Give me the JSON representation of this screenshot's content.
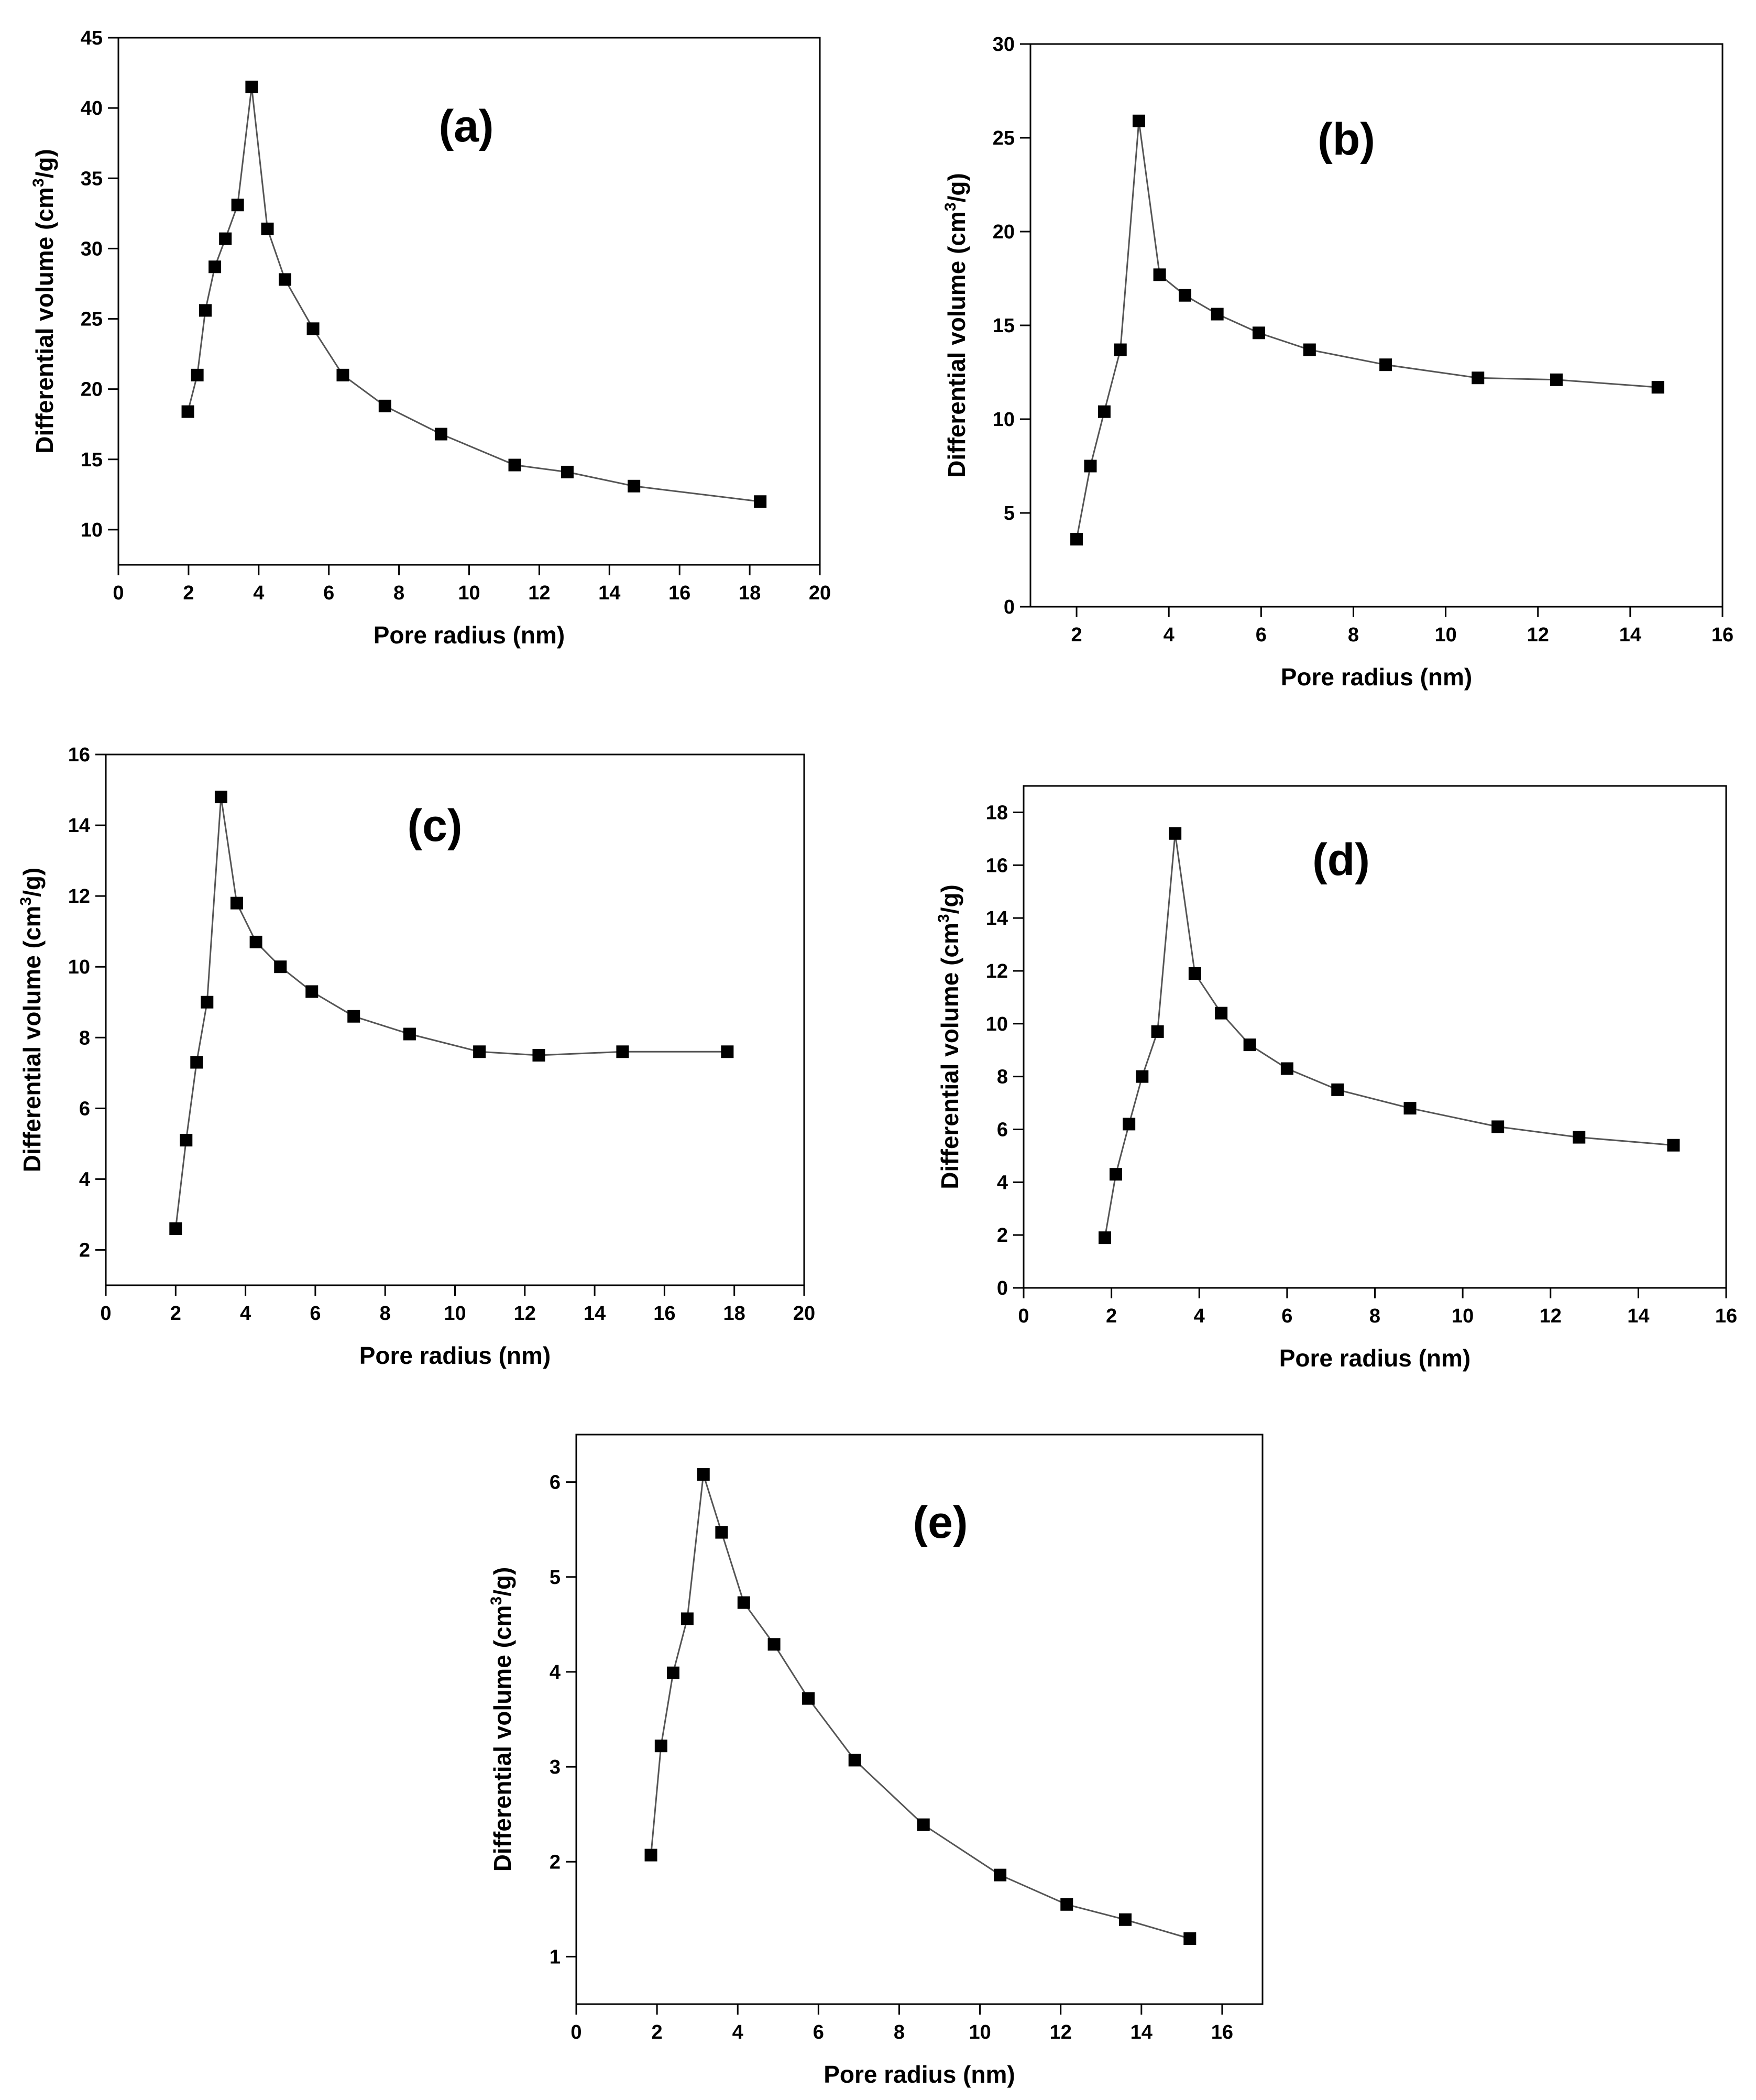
{
  "figure": {
    "description_free": true
  },
  "chart_data": [
    {
      "id": "a",
      "type": "line",
      "title": "(a)",
      "xlabel": "Pore radius (nm)",
      "ylabel_main": "Differential volume (cm",
      "ylabel_sup": "3",
      "ylabel_tail": "/g)",
      "xlim": [
        0,
        20
      ],
      "ylim": [
        7.5,
        45
      ],
      "xticks": [
        0,
        2,
        4,
        6,
        8,
        10,
        12,
        14,
        16,
        18,
        20
      ],
      "xtick_labels": [
        "0",
        "2",
        "4",
        "6",
        "8",
        "10",
        "12",
        "14",
        "16",
        "18",
        "20"
      ],
      "yticks": [
        10,
        15,
        20,
        25,
        30,
        35,
        40,
        45
      ],
      "ytick_labels": [
        "10",
        "15",
        "20",
        "25",
        "30",
        "35",
        "40",
        "45"
      ],
      "marker": "square",
      "x": [
        1.98,
        2.25,
        2.48,
        2.75,
        3.05,
        3.4,
        3.8,
        4.25,
        4.75,
        5.55,
        6.4,
        7.6,
        9.2,
        11.3,
        12.8,
        14.7,
        18.3
      ],
      "y": [
        18.4,
        21.0,
        25.6,
        28.7,
        30.7,
        33.1,
        41.5,
        31.4,
        27.8,
        24.3,
        21.0,
        18.8,
        16.8,
        14.6,
        14.1,
        13.1,
        12.0
      ]
    },
    {
      "id": "b",
      "type": "line",
      "title": "(b)",
      "xlabel": "Pore radius (nm)",
      "ylabel_main": "Differential volume (cm",
      "ylabel_sup": "3",
      "ylabel_tail": "/g)",
      "xlim": [
        1,
        16
      ],
      "ylim": [
        0,
        30
      ],
      "xticks": [
        2,
        4,
        6,
        8,
        10,
        12,
        14,
        16
      ],
      "xtick_labels": [
        "2",
        "4",
        "6",
        "8",
        "10",
        "12",
        "14",
        "16"
      ],
      "yticks": [
        0,
        5,
        10,
        15,
        20,
        25,
        30
      ],
      "ytick_labels": [
        "0",
        "5",
        "10",
        "15",
        "20",
        "25",
        "30"
      ],
      "marker": "square",
      "x": [
        2.0,
        2.3,
        2.6,
        2.95,
        3.35,
        3.8,
        4.35,
        5.05,
        5.95,
        7.05,
        8.7,
        10.7,
        12.4,
        14.6
      ],
      "y": [
        3.6,
        7.5,
        10.4,
        13.7,
        25.9,
        17.7,
        16.6,
        15.6,
        14.6,
        13.7,
        12.9,
        12.2,
        12.1,
        11.7
      ]
    },
    {
      "id": "c",
      "type": "line",
      "title": "(c)",
      "xlabel": "Pore radius (nm)",
      "ylabel_main": "Differential volume (cm",
      "ylabel_sup": "3",
      "ylabel_tail": "/g)",
      "xlim": [
        0,
        20
      ],
      "ylim": [
        1,
        16
      ],
      "xticks": [
        0,
        2,
        4,
        6,
        8,
        10,
        12,
        14,
        16,
        18,
        20
      ],
      "xtick_labels": [
        "0",
        "2",
        "4",
        "6",
        "8",
        "10",
        "12",
        "14",
        "16",
        "18",
        "20"
      ],
      "yticks": [
        2,
        4,
        6,
        8,
        10,
        12,
        14,
        16
      ],
      "ytick_labels": [
        "2",
        "4",
        "6",
        "8",
        "10",
        "12",
        "14",
        "16"
      ],
      "marker": "square",
      "x": [
        2.0,
        2.3,
        2.6,
        2.9,
        3.3,
        3.75,
        4.3,
        5.0,
        5.9,
        7.1,
        8.7,
        10.7,
        12.4,
        14.8,
        17.8
      ],
      "y": [
        2.6,
        5.1,
        7.3,
        9.0,
        14.8,
        11.8,
        10.7,
        10.0,
        9.3,
        8.6,
        8.1,
        7.6,
        7.5,
        7.6,
        7.6
      ]
    },
    {
      "id": "d",
      "type": "line",
      "title": "(d)",
      "xlabel": "Pore radius (nm)",
      "ylabel_main": "Differential volume (cm",
      "ylabel_sup": "3",
      "ylabel_tail": "/g)",
      "xlim": [
        0,
        16
      ],
      "ylim": [
        0,
        19
      ],
      "xticks": [
        0,
        2,
        4,
        6,
        8,
        10,
        12,
        14,
        16
      ],
      "xtick_labels": [
        "0",
        "2",
        "4",
        "6",
        "8",
        "10",
        "12",
        "14",
        "16"
      ],
      "yticks": [
        0,
        2,
        4,
        6,
        8,
        10,
        12,
        14,
        16,
        18
      ],
      "ytick_labels": [
        "0",
        "2",
        "4",
        "6",
        "8",
        "10",
        "12",
        "14",
        "16",
        "18"
      ],
      "marker": "square",
      "x": [
        1.85,
        2.1,
        2.4,
        2.7,
        3.05,
        3.45,
        3.9,
        4.5,
        5.15,
        6.0,
        7.15,
        8.8,
        10.8,
        12.65,
        14.8
      ],
      "y": [
        1.9,
        4.3,
        6.2,
        8.0,
        9.7,
        17.2,
        11.9,
        10.4,
        9.2,
        8.3,
        7.5,
        6.8,
        6.1,
        5.7,
        5.4
      ]
    },
    {
      "id": "e",
      "type": "line",
      "title": "(e)",
      "xlabel": "Pore radius (nm)",
      "ylabel_main": "Differential volume (cm",
      "ylabel_sup": "3",
      "ylabel_tail": "/g)",
      "xlim": [
        0,
        17
      ],
      "ylim": [
        0.5,
        6.5
      ],
      "xticks": [
        0,
        2,
        4,
        6,
        8,
        10,
        12,
        14,
        16
      ],
      "xtick_labels": [
        "0",
        "2",
        "4",
        "6",
        "8",
        "10",
        "12",
        "14",
        "16"
      ],
      "yticks": [
        1,
        2,
        3,
        4,
        5,
        6
      ],
      "ytick_labels": [
        "1",
        "2",
        "3",
        "4",
        "5",
        "6"
      ],
      "marker": "square",
      "x": [
        1.85,
        2.1,
        2.4,
        2.75,
        3.15,
        3.6,
        4.15,
        4.9,
        5.75,
        6.9,
        8.6,
        10.5,
        12.15,
        13.6,
        15.2
      ],
      "y": [
        2.07,
        3.22,
        3.99,
        4.56,
        6.08,
        5.47,
        4.73,
        4.29,
        3.72,
        3.07,
        2.39,
        1.86,
        1.55,
        1.39,
        1.19
      ]
    }
  ]
}
